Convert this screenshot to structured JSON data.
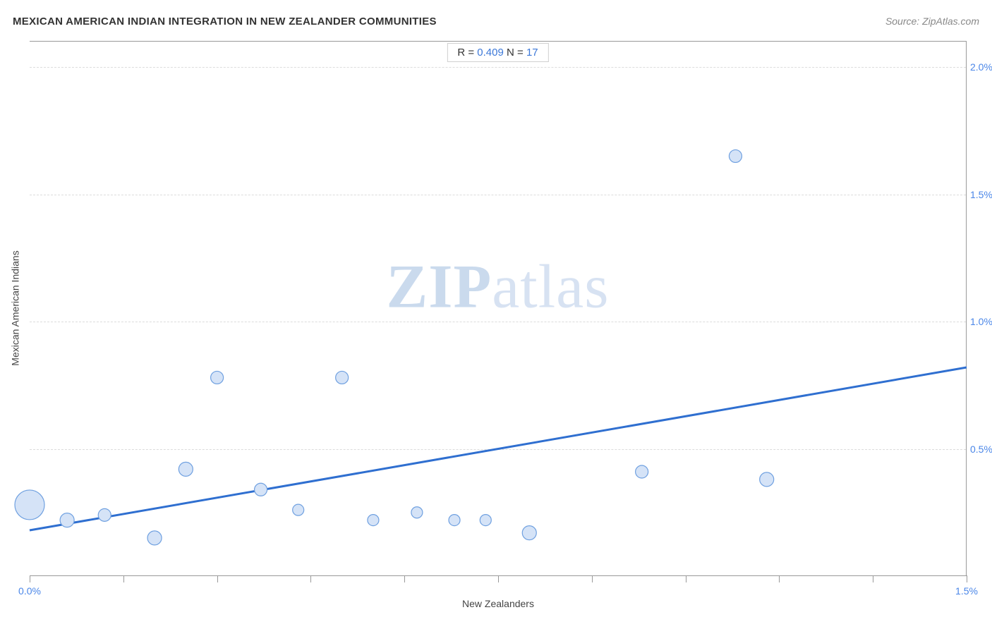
{
  "header": {
    "title": "MEXICAN AMERICAN INDIAN INTEGRATION IN NEW ZEALANDER COMMUNITIES",
    "source_prefix": "Source: ",
    "source_link": "ZipAtlas.com"
  },
  "watermark": {
    "bold": "ZIP",
    "light": "atlas"
  },
  "legend": {
    "r_label": "R = ",
    "r_value": "0.409",
    "n_label": "   N = ",
    "n_value": "17"
  },
  "chart": {
    "type": "scatter",
    "xlabel": "New Zealanders",
    "ylabel": "Mexican American Indians",
    "xlim": [
      0.0,
      1.5
    ],
    "ylim": [
      0.0,
      2.1
    ],
    "x_ticks": [
      0.0,
      1.5
    ],
    "x_tick_labels": [
      "0.0%",
      "1.5%"
    ],
    "x_minor_ticks": [
      0.15,
      0.3,
      0.45,
      0.6,
      0.75,
      0.9,
      1.05,
      1.2,
      1.35
    ],
    "y_ticks": [
      0.5,
      1.0,
      1.5,
      2.0
    ],
    "y_tick_labels": [
      "0.5%",
      "1.0%",
      "1.5%",
      "2.0%"
    ],
    "grid_color": "#dcdcdc",
    "background_color": "#ffffff",
    "axis_color": "#999999",
    "tick_label_color": "#4a86e8",
    "label_color": "#444444",
    "label_fontsize": 14,
    "title_fontsize": 15,
    "point_fill": "#d5e3f7",
    "point_stroke": "#6fa0e0",
    "point_stroke_width": 1.2,
    "line_color": "#2f6fd0",
    "line_width": 3,
    "trend_line": {
      "x1": 0.0,
      "y1": 0.18,
      "x2": 1.5,
      "y2": 0.82
    },
    "points": [
      {
        "x": 0.0,
        "y": 0.28,
        "r": 21
      },
      {
        "x": 0.06,
        "y": 0.22,
        "r": 10
      },
      {
        "x": 0.12,
        "y": 0.24,
        "r": 9
      },
      {
        "x": 0.2,
        "y": 0.15,
        "r": 10
      },
      {
        "x": 0.25,
        "y": 0.42,
        "r": 10
      },
      {
        "x": 0.3,
        "y": 0.78,
        "r": 9
      },
      {
        "x": 0.37,
        "y": 0.34,
        "r": 9
      },
      {
        "x": 0.43,
        "y": 0.26,
        "r": 8
      },
      {
        "x": 0.5,
        "y": 0.78,
        "r": 9
      },
      {
        "x": 0.55,
        "y": 0.22,
        "r": 8
      },
      {
        "x": 0.62,
        "y": 0.25,
        "r": 8
      },
      {
        "x": 0.68,
        "y": 0.22,
        "r": 8
      },
      {
        "x": 0.73,
        "y": 0.22,
        "r": 8
      },
      {
        "x": 0.8,
        "y": 0.17,
        "r": 10
      },
      {
        "x": 0.98,
        "y": 0.41,
        "r": 9
      },
      {
        "x": 1.13,
        "y": 1.65,
        "r": 9
      },
      {
        "x": 1.18,
        "y": 0.38,
        "r": 10
      }
    ]
  }
}
